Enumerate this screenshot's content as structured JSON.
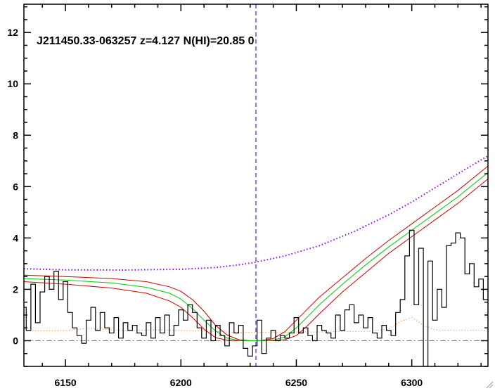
{
  "chart_data": {
    "type": "line",
    "title": "J211450.33-063257 z=4.127 N(HI)=20.85 0",
    "xlabel": "",
    "ylabel": "",
    "xlim": [
      6132,
      6333
    ],
    "ylim": [
      -1,
      13.1
    ],
    "x_ticks": [
      6150,
      6200,
      6250,
      6300
    ],
    "y_ticks": [
      0,
      2,
      4,
      6,
      8,
      10,
      12
    ],
    "grid": false,
    "line_center_x": 6232.5,
    "continuum": {
      "x": [
        6132,
        6150,
        6175,
        6200,
        6215,
        6225,
        6232,
        6245,
        6260,
        6275,
        6290,
        6300,
        6310,
        6320,
        6333
      ],
      "y": [
        2.8,
        2.76,
        2.75,
        2.78,
        2.85,
        2.95,
        3.05,
        3.3,
        3.7,
        4.25,
        4.9,
        5.4,
        5.95,
        6.5,
        7.2
      ]
    },
    "model_fit": {
      "x": [
        6132,
        6150,
        6170,
        6185,
        6195,
        6200,
        6205,
        6210,
        6215,
        6220,
        6225,
        6230,
        6235,
        6240,
        6245,
        6250,
        6255,
        6260,
        6270,
        6280,
        6290,
        6300,
        6310,
        6320,
        6333
      ],
      "y": [
        2.42,
        2.36,
        2.25,
        2.08,
        1.85,
        1.62,
        1.25,
        0.8,
        0.38,
        0.1,
        0.01,
        0,
        0,
        0.02,
        0.15,
        0.5,
        0.95,
        1.4,
        2.2,
        2.95,
        3.65,
        4.3,
        4.95,
        5.6,
        6.55
      ]
    },
    "model_upper": {
      "x": [
        6132,
        6150,
        6170,
        6185,
        6195,
        6200,
        6205,
        6210,
        6215,
        6220,
        6225,
        6230,
        6235,
        6240,
        6245,
        6250,
        6255,
        6260,
        6270,
        6280,
        6290,
        6300,
        6310,
        6320,
        6333
      ],
      "y": [
        2.55,
        2.5,
        2.42,
        2.3,
        2.1,
        1.92,
        1.6,
        1.15,
        0.6,
        0.22,
        0.04,
        0,
        0.01,
        0.08,
        0.35,
        0.8,
        1.25,
        1.7,
        2.45,
        3.2,
        3.9,
        4.55,
        5.2,
        5.85,
        6.8
      ]
    },
    "model_lower": {
      "x": [
        6132,
        6150,
        6170,
        6185,
        6195,
        6200,
        6205,
        6210,
        6215,
        6220,
        6225,
        6230,
        6235,
        6240,
        6245,
        6250,
        6255,
        6260,
        6270,
        6280,
        6290,
        6300,
        6310,
        6320,
        6333
      ],
      "y": [
        2.3,
        2.2,
        2.05,
        1.85,
        1.55,
        1.3,
        0.9,
        0.45,
        0.12,
        0.02,
        0,
        0,
        0,
        0,
        0.04,
        0.2,
        0.6,
        1.05,
        1.9,
        2.65,
        3.4,
        4.05,
        4.7,
        5.35,
        6.3
      ]
    },
    "error": {
      "x": [
        6132,
        6140,
        6150,
        6160,
        6170,
        6180,
        6190,
        6200,
        6210,
        6220,
        6230,
        6240,
        6250,
        6260,
        6270,
        6280,
        6290,
        6295,
        6300,
        6305,
        6310,
        6320,
        6333
      ],
      "y": [
        0.4,
        0.38,
        0.4,
        0.48,
        0.42,
        0.4,
        0.42,
        0.4,
        0.38,
        0.34,
        0.32,
        0.32,
        0.34,
        0.34,
        0.36,
        0.36,
        0.45,
        0.75,
        0.9,
        0.6,
        0.42,
        0.4,
        0.42
      ]
    },
    "zero_line": 0,
    "flux": {
      "x": [
        6132,
        6134,
        6136,
        6138,
        6140,
        6142,
        6144,
        6146,
        6148,
        6150,
        6152,
        6154,
        6156,
        6158,
        6160,
        6162,
        6164,
        6166,
        6168,
        6170,
        6172,
        6174,
        6176,
        6178,
        6180,
        6182,
        6184,
        6186,
        6188,
        6190,
        6192,
        6194,
        6196,
        6198,
        6200,
        6202,
        6204,
        6206,
        6208,
        6210,
        6212,
        6214,
        6216,
        6218,
        6220,
        6222,
        6224,
        6226,
        6228,
        6230,
        6232,
        6234,
        6236,
        6238,
        6240,
        6242,
        6244,
        6246,
        6248,
        6250,
        6252,
        6254,
        6256,
        6258,
        6260,
        6262,
        6264,
        6266,
        6268,
        6270,
        6272,
        6274,
        6276,
        6278,
        6280,
        6282,
        6284,
        6286,
        6288,
        6290,
        6292,
        6294,
        6296,
        6298,
        6300,
        6302,
        6304,
        6306,
        6308,
        6310,
        6312,
        6314,
        6316,
        6318,
        6320,
        6322,
        6324,
        6326,
        6328,
        6330,
        6332
      ],
      "y": [
        1.3,
        0.4,
        2.2,
        0.7,
        1.9,
        2.5,
        2.0,
        2.7,
        1.6,
        2.3,
        1.1,
        0.5,
        0.2,
        -0.1,
        0.8,
        1.3,
        0.4,
        1.1,
        0.5,
        0.3,
        0.9,
        0.1,
        0.7,
        0.4,
        0.6,
        0.3,
        0.2,
        0.7,
        0.1,
        0.9,
        0.3,
        1.0,
        0.2,
        0.6,
        1.2,
        0.8,
        1.4,
        1.1,
        0.5,
        0.1,
        0.8,
        0.0,
        0.6,
        0.2,
        -0.2,
        0.7,
        0.3,
        0.6,
        -0.3,
        -0.6,
        -0.2,
        0.8,
        -0.5,
        0.1,
        0.4,
        0.0,
        0.2,
        0.1,
        0.3,
        0.9,
        0.3,
        0.5,
        0.2,
        0.0,
        0.6,
        0.4,
        0.3,
        0.1,
        1.0,
        0.4,
        1.2,
        1.4,
        0.7,
        1.0,
        0.5,
        0.9,
        0.3,
        0.1,
        0.6,
        0.4,
        0.2,
        1.1,
        1.6,
        3.3,
        4.3,
        1.4,
        3.6,
        -1.0,
        3.1,
        0.8,
        2.0,
        1.3,
        3.7,
        3.8,
        4.2,
        4.0,
        2.6,
        3.0,
        2.1,
        2.4,
        1.6
      ]
    }
  }
}
